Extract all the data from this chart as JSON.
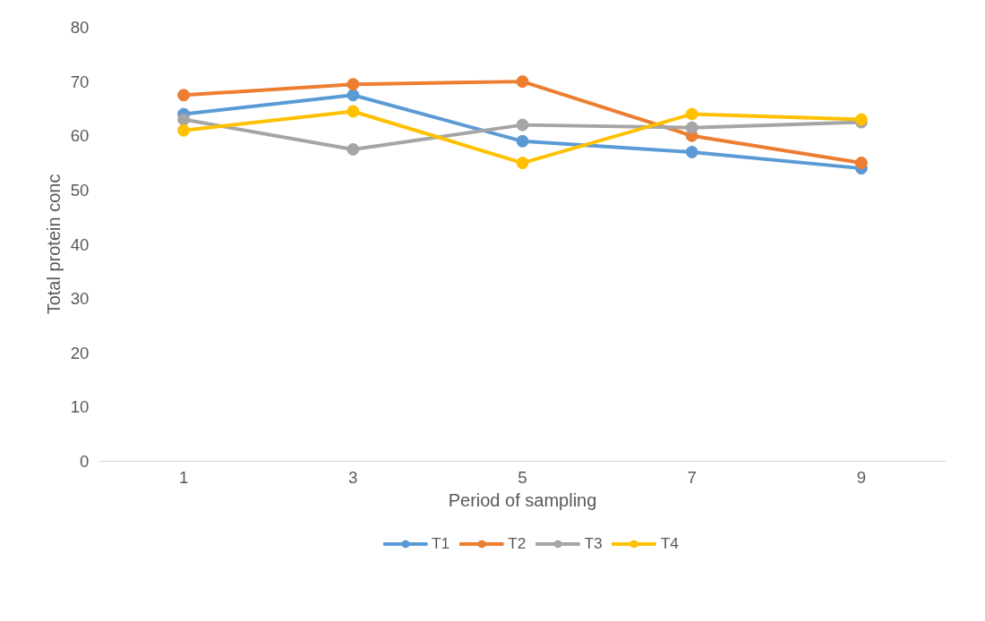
{
  "chart_data": {
    "type": "line",
    "xlabel": "Period of sampling",
    "ylabel": "Total protein conc",
    "categories": [
      "1",
      "3",
      "5",
      "7",
      "9"
    ],
    "series": [
      {
        "name": "T1",
        "color": "#5b9bd5",
        "values": [
          64,
          67.5,
          59,
          57,
          54
        ]
      },
      {
        "name": "T2",
        "color": "#ed7d31",
        "values": [
          67.5,
          69.5,
          70,
          60,
          55
        ]
      },
      {
        "name": "T3",
        "color": "#a5a5a5",
        "values": [
          63,
          57.5,
          62,
          61.5,
          62.5
        ]
      },
      {
        "name": "T4",
        "color": "#ffc000",
        "values": [
          61,
          64.5,
          55,
          64,
          63
        ]
      }
    ],
    "ylim": [
      0,
      80
    ],
    "yticks": [
      0,
      10,
      20,
      30,
      40,
      50,
      60,
      70,
      80
    ],
    "grid": false,
    "legend": "bottom",
    "marker": "circle",
    "line_style": "solid"
  }
}
